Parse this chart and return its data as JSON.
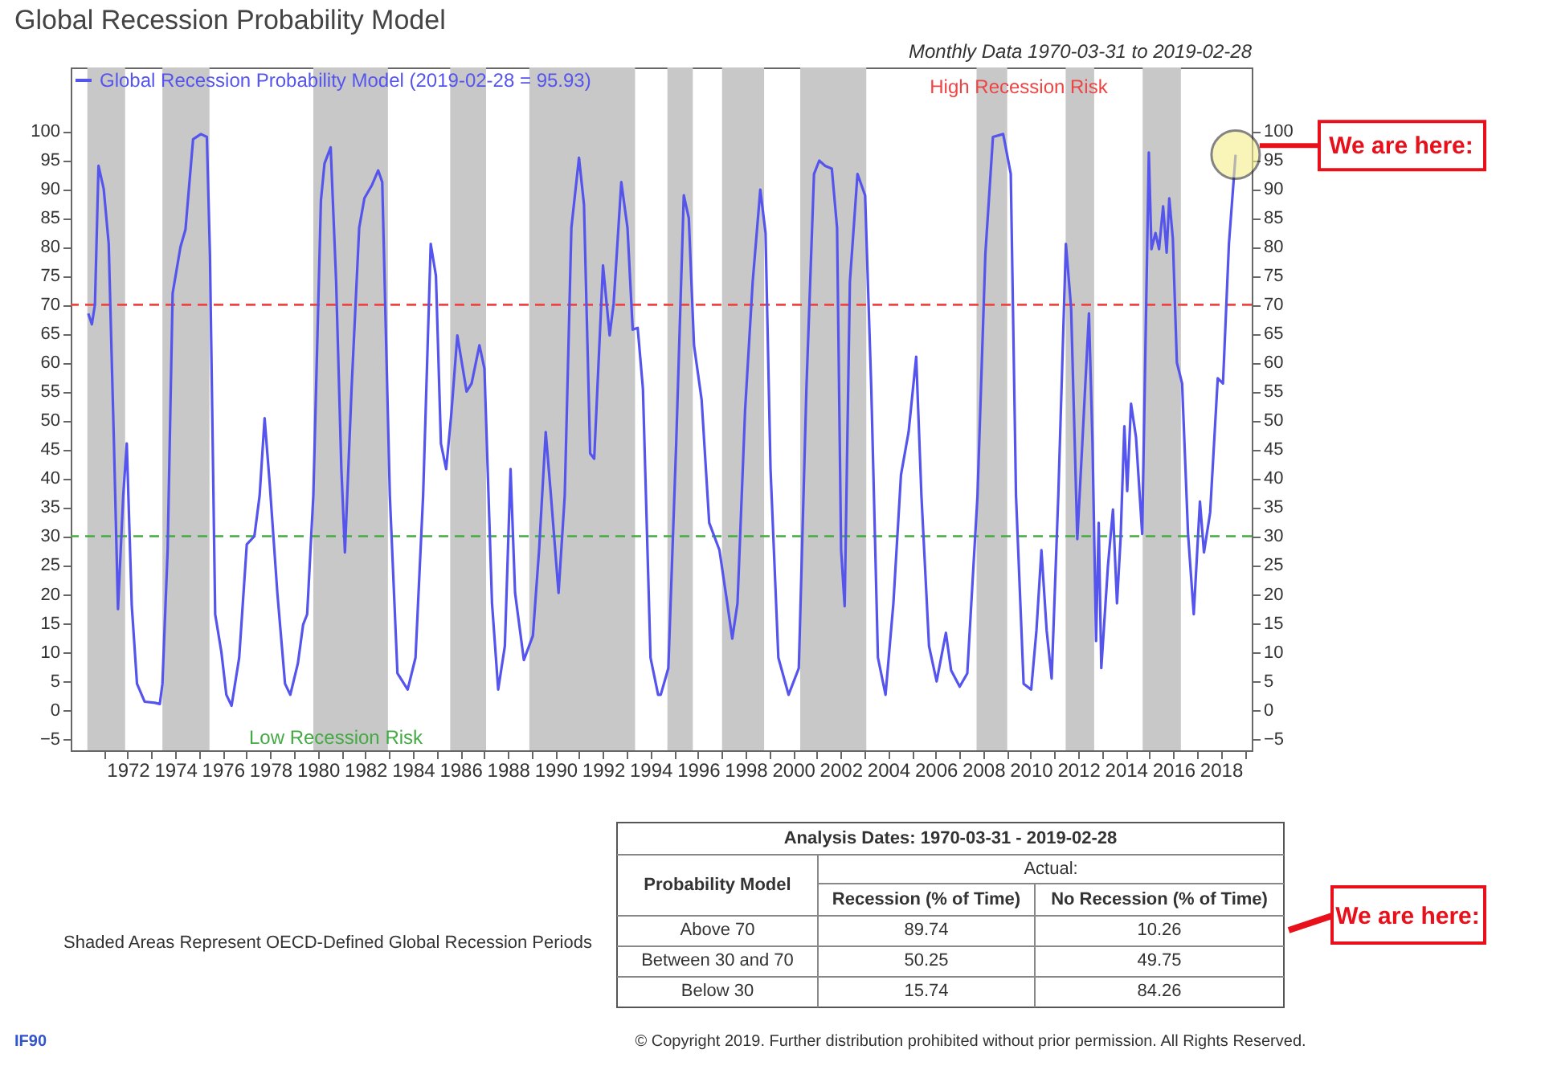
{
  "chart_data": {
    "type": "line",
    "title": "Global Recession Probability Model",
    "subtitle": "Monthly Data 1970-03-31 to 2019-02-28",
    "x": [
      1970.34,
      1970.49,
      1970.62,
      1970.77,
      1970.99,
      1971.2,
      1971.42,
      1971.59,
      1971.81,
      1971.96,
      1972.17,
      1972.39,
      1972.71,
      1973.14,
      1973.35,
      1973.46,
      1973.68,
      1973.89,
      1974.22,
      1974.43,
      1974.75,
      1975.08,
      1975.33,
      1975.46,
      1975.68,
      1975.94,
      1976.15,
      1976.37,
      1976.69,
      1977.01,
      1977.33,
      1977.55,
      1977.76,
      1977.98,
      1978.3,
      1978.62,
      1978.84,
      1979.16,
      1979.38,
      1979.55,
      1979.81,
      1980.13,
      1980.28,
      1980.54,
      1980.77,
      1980.99,
      1981.14,
      1981.42,
      1981.74,
      1981.96,
      1982.28,
      1982.54,
      1982.71,
      1983.03,
      1983.35,
      1983.78,
      1984.11,
      1984.43,
      1984.75,
      1984.97,
      1985.18,
      1985.4,
      1985.61,
      1985.87,
      1986.26,
      1986.47,
      1986.8,
      1987.01,
      1987.33,
      1987.59,
      1987.87,
      1988.11,
      1988.3,
      1988.67,
      1989.05,
      1989.31,
      1989.59,
      1989.81,
      1990.13,
      1990.39,
      1990.67,
      1990.99,
      1991.2,
      1991.46,
      1991.63,
      1992.0,
      1992.28,
      1992.45,
      1992.77,
      1993.03,
      1993.25,
      1993.46,
      1993.68,
      1994.0,
      1994.32,
      1994.43,
      1994.75,
      1995.08,
      1995.4,
      1995.61,
      1995.83,
      1996.15,
      1996.47,
      1996.9,
      1997.23,
      1997.44,
      1997.66,
      1997.98,
      1998.3,
      1998.62,
      1998.84,
      1999.05,
      1999.38,
      1999.81,
      2000.24,
      2000.56,
      2000.88,
      2001.1,
      2001.35,
      2001.63,
      2001.85,
      2002.02,
      2002.17,
      2002.39,
      2002.71,
      2003.03,
      2003.29,
      2003.57,
      2003.89,
      2004.22,
      2004.54,
      2004.86,
      2005.18,
      2005.4,
      2005.72,
      2006.04,
      2006.43,
      2006.65,
      2007.01,
      2007.33,
      2007.76,
      2008.09,
      2008.41,
      2008.84,
      2009.16,
      2009.38,
      2009.7,
      2010.02,
      2010.24,
      2010.45,
      2010.67,
      2010.88,
      2011.16,
      2011.48,
      2011.7,
      2011.96,
      2012.17,
      2012.45,
      2012.6,
      2012.75,
      2012.86,
      2012.97,
      2013.25,
      2013.46,
      2013.63,
      2013.78,
      2013.94,
      2014.06,
      2014.22,
      2014.43,
      2014.69,
      2014.97,
      2015.08,
      2015.25,
      2015.4,
      2015.57,
      2015.72,
      2015.83,
      2015.98,
      2016.15,
      2016.37,
      2016.62,
      2016.86,
      2017.12,
      2017.29,
      2017.55,
      2017.87,
      2018.09,
      2018.34,
      2018.62
    ],
    "series": [
      {
        "name": "Global Recession Probability Model (2019-02-28 = 95.93)",
        "color": "#5555ee",
        "values": [
          68.5,
          66.6,
          70,
          94,
          90,
          80.5,
          46,
          17.4,
          37,
          46,
          18,
          4.5,
          1.4,
          1.2,
          1,
          4.5,
          27.6,
          72,
          80,
          83,
          98.6,
          99.5,
          99,
          78.7,
          16.5,
          10,
          2.6,
          0.7,
          9,
          28.6,
          30,
          37,
          50.4,
          38.8,
          20,
          4.5,
          2.6,
          8,
          14.7,
          16.5,
          37,
          88,
          94.4,
          97.2,
          74,
          41.6,
          27.2,
          55.5,
          83.3,
          88.4,
          90.7,
          93.2,
          91.2,
          37,
          6.3,
          3.5,
          9,
          37,
          80.5,
          75,
          46,
          41.6,
          50.8,
          64.7,
          55,
          56.4,
          63,
          59,
          18.4,
          3.5,
          11,
          41.6,
          20.2,
          8.6,
          12.8,
          27.6,
          48,
          37,
          20.2,
          37,
          83.3,
          95.4,
          87.3,
          44.3,
          43.4,
          76.8,
          64.7,
          70.3,
          91.2,
          83.3,
          65.7,
          66,
          55.5,
          9,
          2.6,
          2.6,
          7.2,
          46,
          88.9,
          85,
          63,
          53.6,
          32.3,
          27.6,
          18.4,
          12.3,
          18.4,
          51.8,
          74,
          89.9,
          82.4,
          41.6,
          9,
          2.6,
          7.2,
          55.5,
          92.6,
          94.9,
          94,
          93.5,
          83.3,
          27.6,
          17.9,
          74,
          92.6,
          88.9,
          55.5,
          9,
          2.6,
          18.4,
          40.6,
          48,
          61,
          37,
          11,
          4.9,
          13.3,
          6.8,
          4,
          6.3,
          37,
          78.7,
          99,
          99.5,
          92.6,
          37,
          4.5,
          3.5,
          13.7,
          27.6,
          13.7,
          5.4,
          37,
          80.5,
          69.4,
          29.5,
          46,
          68.5,
          46,
          11.9,
          32.3,
          7.2,
          24.9,
          34.6,
          18.4,
          29.5,
          49,
          37.8,
          52.9,
          47.1,
          30.4,
          96.3,
          79.6,
          82.4,
          79.6,
          87,
          79,
          88.4,
          81.4,
          60,
          56.4,
          30.4,
          16.5,
          36,
          27.2,
          34.1,
          57.3,
          56.4,
          80.5,
          95.93
        ]
      }
    ],
    "xlim": [
      1969.6,
      2019.3
    ],
    "xticks": [
      {
        "value": 1971,
        "label": null
      },
      1972,
      {
        "value": 1973,
        "label": null
      },
      1974,
      {
        "value": 1975,
        "label": null
      },
      1976,
      {
        "value": 1977,
        "label": null
      },
      1978,
      {
        "value": 1979,
        "label": null
      },
      1980,
      {
        "value": 1981,
        "label": null
      },
      1982,
      {
        "value": 1983,
        "label": null
      },
      1984,
      {
        "value": 1985,
        "label": null
      },
      1986,
      {
        "value": 1987,
        "label": null
      },
      1988,
      {
        "value": 1989,
        "label": null
      },
      1990,
      {
        "value": 1991,
        "label": null
      },
      1992,
      {
        "value": 1993,
        "label": null
      },
      1994,
      {
        "value": 1995,
        "label": null
      },
      1996,
      {
        "value": 1997,
        "label": null
      },
      1998,
      {
        "value": 1999,
        "label": null
      },
      2000,
      {
        "value": 2001,
        "label": null
      },
      2002,
      {
        "value": 2003,
        "label": null
      },
      2004,
      {
        "value": 2005,
        "label": null
      },
      2006,
      {
        "value": 2007,
        "label": null
      },
      2008,
      {
        "value": 2009,
        "label": null
      },
      2010,
      {
        "value": 2011,
        "label": null
      },
      2012,
      {
        "value": 2013,
        "label": null
      },
      2014,
      {
        "value": 2015,
        "label": null
      },
      2016,
      {
        "value": 2017,
        "label": null
      },
      2018,
      {
        "value": 2019,
        "label": null
      }
    ],
    "ylim": [
      -7,
      111
    ],
    "yticks": [
      -5,
      0,
      5,
      10,
      15,
      20,
      25,
      30,
      35,
      40,
      45,
      50,
      55,
      60,
      65,
      70,
      75,
      80,
      85,
      90,
      95,
      100
    ],
    "y2lim": [
      -7,
      111
    ],
    "y2ticks": [
      -5,
      0,
      5,
      10,
      15,
      20,
      25,
      30,
      35,
      40,
      45,
      50,
      55,
      60,
      65,
      70,
      75,
      80,
      85,
      90,
      95,
      100
    ],
    "ref_lines": [
      {
        "axis": "y",
        "value": 70,
        "label": "High Recession Risk",
        "color": "#ee4444",
        "line_style": "dashed"
      },
      {
        "axis": "y",
        "value": 30,
        "label": "Low Recession Risk",
        "color": "#44aa44",
        "line_style": "dashed"
      }
    ],
    "bands": [
      {
        "axis": "x",
        "from": 1970.3,
        "to": 1971.89,
        "color": "#c8c8c8"
      },
      {
        "axis": "x",
        "from": 1973.46,
        "to": 1975.44,
        "color": "#c8c8c8"
      },
      {
        "axis": "x",
        "from": 1979.81,
        "to": 1982.95,
        "color": "#c8c8c8"
      },
      {
        "axis": "x",
        "from": 1985.57,
        "to": 1987.08,
        "color": "#c8c8c8"
      },
      {
        "axis": "x",
        "from": 1988.9,
        "to": 1993.35,
        "color": "#c8c8c8"
      },
      {
        "axis": "x",
        "from": 1994.71,
        "to": 1995.78,
        "color": "#c8c8c8"
      },
      {
        "axis": "x",
        "from": 1997.01,
        "to": 1998.78,
        "color": "#c8c8c8"
      },
      {
        "axis": "x",
        "from": 2000.3,
        "to": 2003.08,
        "color": "#c8c8c8"
      },
      {
        "axis": "x",
        "from": 2007.72,
        "to": 2009.01,
        "color": "#c8c8c8"
      },
      {
        "axis": "x",
        "from": 2011.47,
        "to": 2012.67,
        "color": "#c8c8c8"
      },
      {
        "axis": "x",
        "from": 2014.71,
        "to": 2016.32,
        "color": "#c8c8c8"
      }
    ],
    "legend": "top left",
    "line_style": "solid",
    "grid": false,
    "annotations": [
      "We are here:",
      "Shaded Areas Represent OECD-Defined Global Recession Periods",
      "Analysis Dates: 1970-03-31 - 2019-02-28",
      "Actual:",
      "Probability Model",
      "Recession (% of Time)",
      "No Recession (% of Time)",
      "Above 70",
      "89.74",
      "10.26",
      "Between 30 and 70",
      "50.25",
      "49.75",
      "Below 30",
      "15.74",
      "84.26",
      "We are here:",
      "© Copyright 2019. Further distribution prohibited without prior permission. All Rights Reserved.",
      "IF90"
    ]
  }
}
